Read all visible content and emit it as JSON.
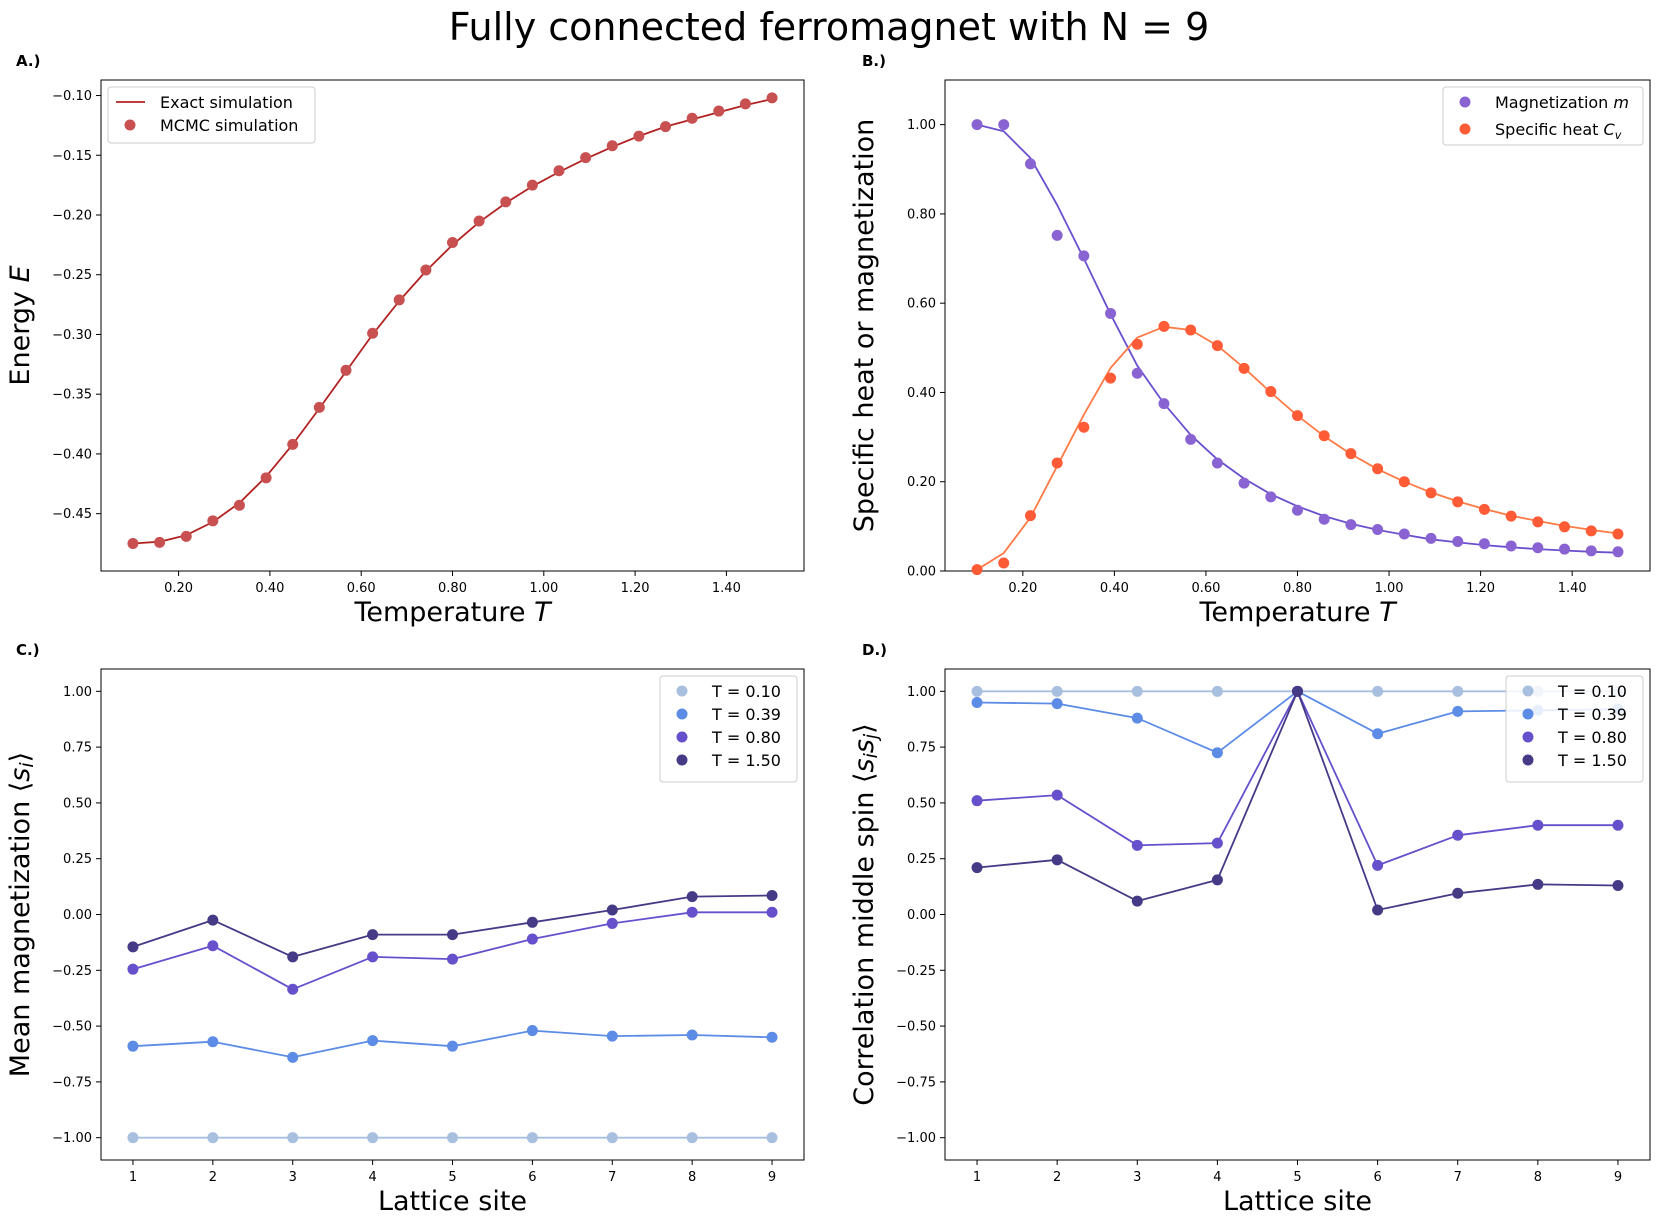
{
  "figure": {
    "title": "Fully connected ferromagnet with N = 9"
  },
  "chart_data": [
    {
      "type": "line",
      "panel": "A.)",
      "xlabel": "Temperature T",
      "xlabel_main": "Temperature ",
      "xlabel_var": "T",
      "ylabel": "Energy E",
      "ylabel_main": "Energy ",
      "ylabel_var": "E",
      "xlim": [
        0.03,
        1.57
      ],
      "ylim": [
        -0.498,
        -0.087
      ],
      "xticks": [
        0.2,
        0.4,
        0.6,
        0.8,
        1.0,
        1.2,
        1.4
      ],
      "yticks": [
        -0.45,
        -0.4,
        -0.35,
        -0.3,
        -0.25,
        -0.2,
        -0.15,
        -0.1
      ],
      "legend_position": "upper left",
      "series": [
        {
          "name": "Exact simulation",
          "kind": "line",
          "color": "#b22222",
          "x": [
            0.1,
            0.1583,
            0.2167,
            0.275,
            0.3333,
            0.3917,
            0.45,
            0.5083,
            0.5667,
            0.625,
            0.6833,
            0.7417,
            0.8,
            0.8583,
            0.9167,
            0.975,
            1.0333,
            1.0917,
            1.15,
            1.2083,
            1.2667,
            1.325,
            1.3833,
            1.4417,
            1.5
          ],
          "y": [
            -0.475,
            -0.4735,
            -0.468,
            -0.457,
            -0.441,
            -0.419,
            -0.392,
            -0.362,
            -0.331,
            -0.3,
            -0.272,
            -0.247,
            -0.225,
            -0.206,
            -0.19,
            -0.176,
            -0.164,
            -0.153,
            -0.143,
            -0.134,
            -0.126,
            -0.12,
            -0.114,
            -0.108,
            -0.103
          ]
        },
        {
          "name": "MCMC simulation",
          "kind": "scatter",
          "color": "#c85050",
          "x": [
            0.1,
            0.1583,
            0.2167,
            0.275,
            0.3333,
            0.3917,
            0.45,
            0.5083,
            0.5667,
            0.625,
            0.6833,
            0.7417,
            0.8,
            0.8583,
            0.9167,
            0.975,
            1.0333,
            1.0917,
            1.15,
            1.2083,
            1.2667,
            1.325,
            1.3833,
            1.4417,
            1.5
          ],
          "y": [
            -0.475,
            -0.474,
            -0.469,
            -0.456,
            -0.443,
            -0.42,
            -0.392,
            -0.361,
            -0.33,
            -0.299,
            -0.271,
            -0.246,
            -0.223,
            -0.205,
            -0.189,
            -0.175,
            -0.163,
            -0.152,
            -0.142,
            -0.134,
            -0.126,
            -0.119,
            -0.113,
            -0.107,
            -0.102
          ]
        }
      ]
    },
    {
      "type": "line",
      "panel": "B.)",
      "xlabel": "Temperature T",
      "xlabel_main": "Temperature ",
      "xlabel_var": "T",
      "ylabel": "Specific heat or magnetization",
      "ylabel_main": "Specific heat or magnetization",
      "ylabel_var": "",
      "xlim": [
        0.03,
        1.57
      ],
      "ylim": [
        0.0,
        1.1
      ],
      "xticks": [
        0.2,
        0.4,
        0.6,
        0.8,
        1.0,
        1.2,
        1.4
      ],
      "yticks": [
        0.0,
        0.2,
        0.4,
        0.6,
        0.8,
        1.0
      ],
      "legend_position": "upper right",
      "series": [
        {
          "name": "",
          "kind": "line",
          "color": "#6a4fcf",
          "x": [
            0.1,
            0.1583,
            0.2167,
            0.275,
            0.3333,
            0.3917,
            0.45,
            0.5083,
            0.5667,
            0.625,
            0.6833,
            0.7417,
            0.8,
            0.8583,
            0.9167,
            0.975,
            1.0333,
            1.0917,
            1.15,
            1.2083,
            1.2667,
            1.325,
            1.3833,
            1.4417,
            1.5
          ],
          "y": [
            1.0,
            0.985,
            0.925,
            0.82,
            0.7,
            0.575,
            0.46,
            0.375,
            0.305,
            0.25,
            0.207,
            0.172,
            0.145,
            0.123,
            0.106,
            0.092,
            0.081,
            0.071,
            0.064,
            0.058,
            0.053,
            0.049,
            0.046,
            0.043,
            0.041
          ]
        },
        {
          "name": "Magnetization m",
          "name_main": "Magnetization ",
          "name_var": "m",
          "kind": "scatter",
          "color": "#8a63d2",
          "x": [
            0.1,
            0.1583,
            0.2167,
            0.275,
            0.3333,
            0.3917,
            0.45,
            0.5083,
            0.5667,
            0.625,
            0.6833,
            0.7417,
            0.8,
            0.8583,
            0.9167,
            0.975,
            1.0333,
            1.0917,
            1.15,
            1.2083,
            1.2667,
            1.325,
            1.3833,
            1.4417,
            1.5
          ],
          "y": [
            1.0,
            1.0,
            0.912,
            0.752,
            0.706,
            0.577,
            0.443,
            0.375,
            0.295,
            0.242,
            0.197,
            0.166,
            0.136,
            0.116,
            0.104,
            0.093,
            0.083,
            0.073,
            0.066,
            0.061,
            0.056,
            0.052,
            0.049,
            0.045,
            0.043
          ]
        },
        {
          "name": "",
          "kind": "line",
          "color": "#ff7a45",
          "x": [
            0.1,
            0.1583,
            0.2167,
            0.275,
            0.3333,
            0.3917,
            0.45,
            0.5083,
            0.5667,
            0.625,
            0.6833,
            0.7417,
            0.8,
            0.8583,
            0.9167,
            0.975,
            1.0333,
            1.0917,
            1.15,
            1.2083,
            1.2667,
            1.325,
            1.3833,
            1.4417,
            1.5
          ],
          "y": [
            0.003,
            0.04,
            0.12,
            0.235,
            0.35,
            0.455,
            0.523,
            0.547,
            0.54,
            0.505,
            0.455,
            0.4,
            0.348,
            0.302,
            0.262,
            0.228,
            0.2,
            0.176,
            0.156,
            0.139,
            0.124,
            0.112,
            0.101,
            0.092,
            0.084
          ]
        },
        {
          "name": "Specific heat Cv",
          "name_main": "Specific heat ",
          "name_var": "C",
          "name_sub": "v",
          "kind": "scatter",
          "color": "#ff5b36",
          "x": [
            0.1,
            0.1583,
            0.2167,
            0.275,
            0.3333,
            0.3917,
            0.45,
            0.5083,
            0.5667,
            0.625,
            0.6833,
            0.7417,
            0.8,
            0.8583,
            0.9167,
            0.975,
            1.0333,
            1.0917,
            1.15,
            1.2083,
            1.2667,
            1.325,
            1.3833,
            1.4417,
            1.5
          ],
          "y": [
            0.003,
            0.018,
            0.124,
            0.242,
            0.322,
            0.432,
            0.508,
            0.548,
            0.54,
            0.505,
            0.454,
            0.402,
            0.348,
            0.303,
            0.263,
            0.229,
            0.2,
            0.175,
            0.155,
            0.138,
            0.123,
            0.11,
            0.099,
            0.09,
            0.083
          ]
        }
      ]
    },
    {
      "type": "line",
      "panel": "C.)",
      "xlabel": "Lattice site",
      "xlabel_main": "Lattice site",
      "xlabel_var": "",
      "ylabel": "Mean magnetization ⟨si⟩",
      "ylabel_main": "Mean magnetization ",
      "ylabel_var": "",
      "xlim": [
        0.6,
        9.4
      ],
      "ylim": [
        -1.1,
        1.1
      ],
      "xticks": [
        1,
        2,
        3,
        4,
        5,
        6,
        7,
        8,
        9
      ],
      "yticks": [
        -1.0,
        -0.75,
        -0.5,
        -0.25,
        0.0,
        0.25,
        0.5,
        0.75,
        1.0
      ],
      "legend_position": "upper right",
      "series": [
        {
          "name": "T = 0.10",
          "color": "#a8bfe0",
          "x": [
            1,
            2,
            3,
            4,
            5,
            6,
            7,
            8,
            9
          ],
          "y": [
            -1.0,
            -1.0,
            -1.0,
            -1.0,
            -1.0,
            -1.0,
            -1.0,
            -1.0,
            -1.0
          ]
        },
        {
          "name": "T = 0.39",
          "color": "#5c8ce6",
          "x": [
            1,
            2,
            3,
            4,
            5,
            6,
            7,
            8,
            9
          ],
          "y": [
            -0.59,
            -0.57,
            -0.64,
            -0.565,
            -0.59,
            -0.52,
            -0.545,
            -0.54,
            -0.55
          ]
        },
        {
          "name": "T = 0.80",
          "color": "#6650cc",
          "x": [
            1,
            2,
            3,
            4,
            5,
            6,
            7,
            8,
            9
          ],
          "y": [
            -0.245,
            -0.14,
            -0.335,
            -0.19,
            -0.2,
            -0.11,
            -0.04,
            0.01,
            0.01
          ]
        },
        {
          "name": "T = 1.50",
          "color": "#453a86",
          "x": [
            1,
            2,
            3,
            4,
            5,
            6,
            7,
            8,
            9
          ],
          "y": [
            -0.145,
            -0.025,
            -0.19,
            -0.09,
            -0.09,
            -0.035,
            0.02,
            0.08,
            0.085
          ]
        }
      ]
    },
    {
      "type": "line",
      "panel": "D.)",
      "xlabel": "Lattice site",
      "xlabel_main": "Lattice site",
      "xlabel_var": "",
      "ylabel": "Correlation middle spin ⟨sisj⟩",
      "ylabel_main": "Correlation middle spin ",
      "ylabel_var": "",
      "xlim": [
        0.6,
        9.4
      ],
      "ylim": [
        -1.1,
        1.1
      ],
      "xticks": [
        1,
        2,
        3,
        4,
        5,
        6,
        7,
        8,
        9
      ],
      "yticks": [
        -1.0,
        -0.75,
        -0.5,
        -0.25,
        0.0,
        0.25,
        0.5,
        0.75,
        1.0
      ],
      "legend_position": "upper right",
      "series": [
        {
          "name": "T = 0.10",
          "color": "#a8bfe0",
          "x": [
            1,
            2,
            3,
            4,
            5,
            6,
            7,
            8,
            9
          ],
          "y": [
            1.0,
            1.0,
            1.0,
            1.0,
            1.0,
            1.0,
            1.0,
            1.0,
            1.0
          ]
        },
        {
          "name": "T = 0.39",
          "color": "#5c8ce6",
          "x": [
            1,
            2,
            3,
            4,
            5,
            6,
            7,
            8,
            9
          ],
          "y": [
            0.95,
            0.945,
            0.88,
            0.725,
            1.0,
            0.81,
            0.91,
            0.915,
            0.92
          ]
        },
        {
          "name": "T = 0.80",
          "color": "#6650cc",
          "x": [
            1,
            2,
            3,
            4,
            5,
            6,
            7,
            8,
            9
          ],
          "y": [
            0.51,
            0.535,
            0.31,
            0.32,
            1.0,
            0.22,
            0.355,
            0.4,
            0.4
          ]
        },
        {
          "name": "T = 1.50",
          "color": "#453a86",
          "x": [
            1,
            2,
            3,
            4,
            5,
            6,
            7,
            8,
            9
          ],
          "y": [
            0.21,
            0.245,
            0.06,
            0.155,
            1.0,
            0.02,
            0.095,
            0.135,
            0.13
          ]
        }
      ]
    }
  ]
}
